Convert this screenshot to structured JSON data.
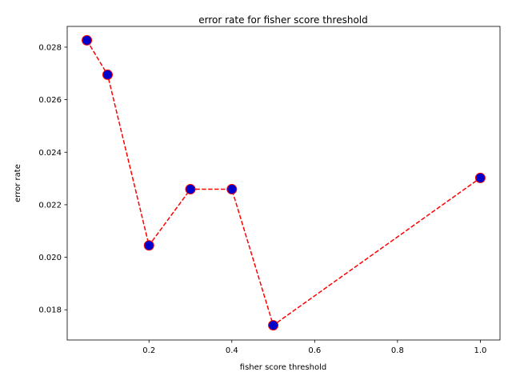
{
  "chart_data": {
    "type": "line",
    "title": "error rate for fisher score threshold",
    "xlabel": "fisher score threshold",
    "ylabel": "error rate",
    "xlim": [
      0.0025,
      1.0475
    ],
    "ylim": [
      0.01685,
      0.02879
    ],
    "xticks": [
      0.2,
      0.4,
      0.6,
      0.8,
      1.0
    ],
    "xtick_labels": [
      "0.2",
      "0.4",
      "0.6",
      "0.8",
      "1.0"
    ],
    "yticks": [
      0.018,
      0.02,
      0.022,
      0.024,
      0.026,
      0.028
    ],
    "ytick_labels": [
      "0.018",
      "0.020",
      "0.022",
      "0.024",
      "0.026",
      "0.028"
    ],
    "grid": false,
    "series": [
      {
        "x": [
          0.05,
          0.1,
          0.2,
          0.3,
          0.4,
          0.5,
          1.0
        ],
        "values": [
          0.02826,
          0.02695,
          0.02045,
          0.02259,
          0.02259,
          0.01741,
          0.02302
        ],
        "line_color": "#ff0000",
        "line_style": "dashed",
        "marker_face": "#0000cd",
        "marker_edge": "#ff0000"
      }
    ]
  }
}
